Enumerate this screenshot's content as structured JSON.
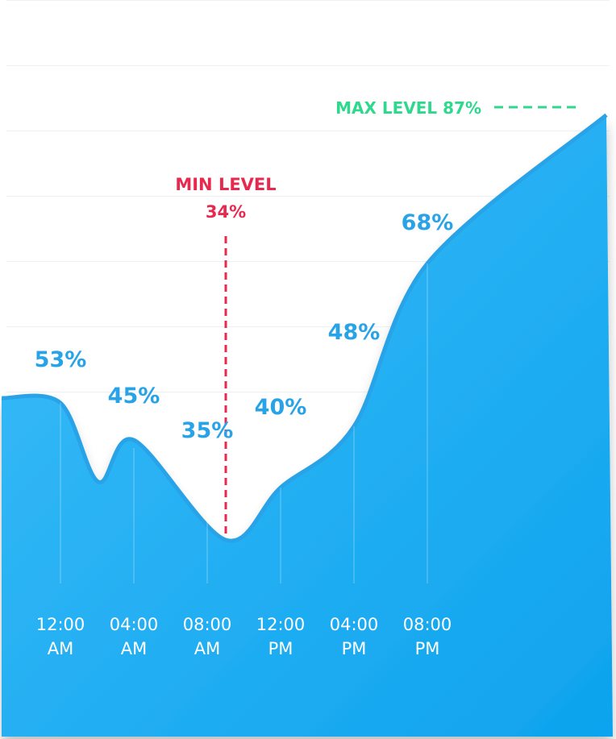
{
  "chart_data": {
    "type": "area",
    "title": "",
    "xlabel": "",
    "ylabel": "",
    "categories": [
      {
        "time": "12:00",
        "period": "AM"
      },
      {
        "time": "04:00",
        "period": "AM"
      },
      {
        "time": "08:00",
        "period": "AM"
      },
      {
        "time": "12:00",
        "period": "PM"
      },
      {
        "time": "04:00",
        "period": "PM"
      },
      {
        "time": "08:00",
        "period": "PM"
      }
    ],
    "series": [
      {
        "values": [
          53,
          45,
          35,
          40,
          48,
          68
        ],
        "labels": [
          "53%",
          "45%",
          "35%",
          "40%",
          "48%",
          "68%"
        ]
      }
    ],
    "min_marker": {
      "title": "MIN LEVEL",
      "value": 34,
      "label": "34%"
    },
    "max_marker": {
      "label": "MAX LEVEL 87%",
      "value": 87
    },
    "ylim": [
      20,
      95
    ],
    "grid": true,
    "colors": {
      "area_top": "#3dbdf8",
      "area_bottom": "#0ea3ee",
      "line": "#29a3e8",
      "value_label": "#29a3e8",
      "min": "#e8294f",
      "max": "#2ed98e",
      "tick_label": "#ffffff"
    }
  }
}
